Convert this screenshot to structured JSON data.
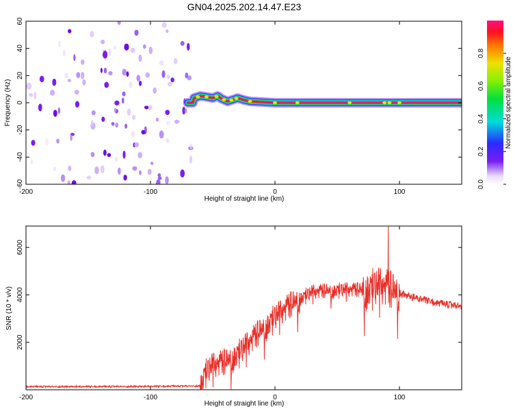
{
  "figure_title": "GN04.2025.202.14.47.E23",
  "chart_data": [
    {
      "type": "heatmap",
      "xlabel": "Height of straight line (km)",
      "ylabel": "Frequency (Hz)",
      "xlim": [
        -200,
        150
      ],
      "ylim": [
        -60,
        60
      ],
      "x_ticks": [
        -200,
        -100,
        0,
        100
      ],
      "y_ticks": [
        -60,
        -40,
        -20,
        0,
        20,
        40,
        60
      ],
      "grid": false,
      "noise_region_x": [
        -200,
        -67
      ],
      "noise_color": "#7a1ff0",
      "signal_band": {
        "x_start": -70,
        "x_end": 150,
        "center_freq": 0,
        "ridge": [
          {
            "x": -65,
            "y": 3.5
          },
          {
            "x": -60,
            "y": 5
          },
          {
            "x": -56,
            "y": 4.5
          },
          {
            "x": -50,
            "y": 3.5
          },
          {
            "x": -46,
            "y": 5
          },
          {
            "x": -43,
            "y": 3
          },
          {
            "x": -38,
            "y": 1
          },
          {
            "x": -33,
            "y": 2.5
          },
          {
            "x": -30,
            "y": 3.5
          },
          {
            "x": -25,
            "y": 2
          },
          {
            "x": -20,
            "y": 1
          },
          {
            "x": -10,
            "y": 0.5
          },
          {
            "x": 0,
            "y": 0
          },
          {
            "x": 150,
            "y": 0
          }
        ]
      },
      "colorbar": {
        "label": "Normalized spectral amplitude",
        "ticks": [
          "0.0",
          "0.2",
          "0.4",
          "0.6",
          "0.8"
        ],
        "range": [
          0,
          1
        ]
      }
    },
    {
      "type": "line",
      "xlabel": "Height of straight line (km)",
      "ylabel": "SNR (10 * v/v)",
      "xlim": [
        -200,
        150
      ],
      "ylim": [
        0,
        6900
      ],
      "x_ticks": [
        -200,
        -100,
        0,
        100
      ],
      "y_ticks": [
        2000,
        4000,
        6000
      ],
      "grid": false,
      "color": "#e8302a",
      "envelope": [
        {
          "x": -200,
          "y": 130
        },
        {
          "x": -150,
          "y": 130
        },
        {
          "x": -100,
          "y": 140
        },
        {
          "x": -60,
          "y": 160
        },
        {
          "x": -56,
          "y": 700
        },
        {
          "x": -50,
          "y": 1000
        },
        {
          "x": -40,
          "y": 1150
        },
        {
          "x": -30,
          "y": 1500
        },
        {
          "x": -20,
          "y": 2000
        },
        {
          "x": -10,
          "y": 2550
        },
        {
          "x": 0,
          "y": 3050
        },
        {
          "x": 10,
          "y": 3450
        },
        {
          "x": 20,
          "y": 3850
        },
        {
          "x": 30,
          "y": 4100
        },
        {
          "x": 50,
          "y": 4200
        },
        {
          "x": 70,
          "y": 4200
        },
        {
          "x": 85,
          "y": 4350
        },
        {
          "x": 95,
          "y": 4150
        },
        {
          "x": 110,
          "y": 3900
        },
        {
          "x": 130,
          "y": 3650
        },
        {
          "x": 150,
          "y": 3500
        }
      ],
      "peak": {
        "x": 91,
        "y": 6900
      }
    }
  ]
}
